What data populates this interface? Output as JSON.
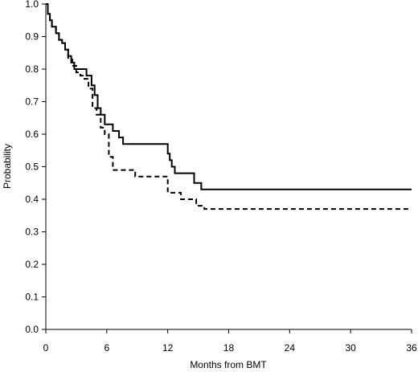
{
  "chart_data": {
    "type": "line",
    "title": "",
    "xlabel": "Months from BMT",
    "ylabel": "Probability",
    "xlim": [
      0,
      36
    ],
    "ylim": [
      0,
      1.0
    ],
    "x_ticks": [
      0,
      6,
      12,
      18,
      24,
      30,
      36
    ],
    "y_ticks": [
      0.0,
      0.1,
      0.2,
      0.3,
      0.4,
      0.5,
      0.6,
      0.7,
      0.8,
      0.9,
      1.0
    ],
    "x_tick_labels": [
      "0",
      "6",
      "12",
      "18",
      "24",
      "30",
      "36"
    ],
    "y_tick_labels": [
      "0.0",
      "0.1",
      "0.2",
      "0.3",
      "0.4",
      "0.5",
      "0.6",
      "0.7",
      "0.8",
      "0.9",
      "1.0"
    ],
    "grid": false,
    "legend": "none",
    "step": true,
    "series": [
      {
        "style": "solid",
        "color": "#000000",
        "x": [
          0,
          0.2,
          0.4,
          0.6,
          1.0,
          1.3,
          1.6,
          1.9,
          2.2,
          2.5,
          2.8,
          3.1,
          3.5,
          4.0,
          4.5,
          4.8,
          5.1,
          5.4,
          5.8,
          6.2,
          6.6,
          7.2,
          7.6,
          8.0,
          12.0,
          12.2,
          12.4,
          12.7,
          13.0,
          14.6,
          15.3,
          15.5,
          36.0
        ],
        "y": [
          1.0,
          0.97,
          0.95,
          0.93,
          0.91,
          0.89,
          0.88,
          0.86,
          0.84,
          0.82,
          0.8,
          0.8,
          0.8,
          0.78,
          0.75,
          0.72,
          0.68,
          0.66,
          0.63,
          0.63,
          0.61,
          0.59,
          0.57,
          0.57,
          0.54,
          0.52,
          0.5,
          0.48,
          0.48,
          0.45,
          0.43,
          0.43,
          0.43
        ],
        "values": [
          1.0,
          0.97,
          0.95,
          0.93,
          0.91,
          0.89,
          0.88,
          0.86,
          0.84,
          0.82,
          0.8,
          0.8,
          0.8,
          0.78,
          0.75,
          0.72,
          0.68,
          0.66,
          0.63,
          0.63,
          0.61,
          0.59,
          0.57,
          0.57,
          0.54,
          0.52,
          0.5,
          0.48,
          0.48,
          0.45,
          0.43,
          0.43,
          0.43
        ]
      },
      {
        "style": "dashed",
        "color": "#000000",
        "x": [
          0,
          0.2,
          0.4,
          0.6,
          1.0,
          1.3,
          1.6,
          1.9,
          2.2,
          2.6,
          3.0,
          3.4,
          3.8,
          4.2,
          4.6,
          5.0,
          5.4,
          5.8,
          6.2,
          6.6,
          8.8,
          12.0,
          13.3,
          14.8,
          15.6,
          36.0
        ],
        "y": [
          1.0,
          0.97,
          0.95,
          0.93,
          0.91,
          0.89,
          0.88,
          0.86,
          0.83,
          0.81,
          0.79,
          0.78,
          0.77,
          0.74,
          0.68,
          0.66,
          0.62,
          0.6,
          0.53,
          0.49,
          0.47,
          0.42,
          0.4,
          0.38,
          0.37,
          0.37
        ],
        "values": [
          1.0,
          0.97,
          0.95,
          0.93,
          0.91,
          0.89,
          0.88,
          0.86,
          0.83,
          0.81,
          0.79,
          0.78,
          0.77,
          0.74,
          0.68,
          0.66,
          0.62,
          0.6,
          0.53,
          0.49,
          0.47,
          0.42,
          0.4,
          0.38,
          0.37,
          0.37
        ]
      }
    ]
  }
}
